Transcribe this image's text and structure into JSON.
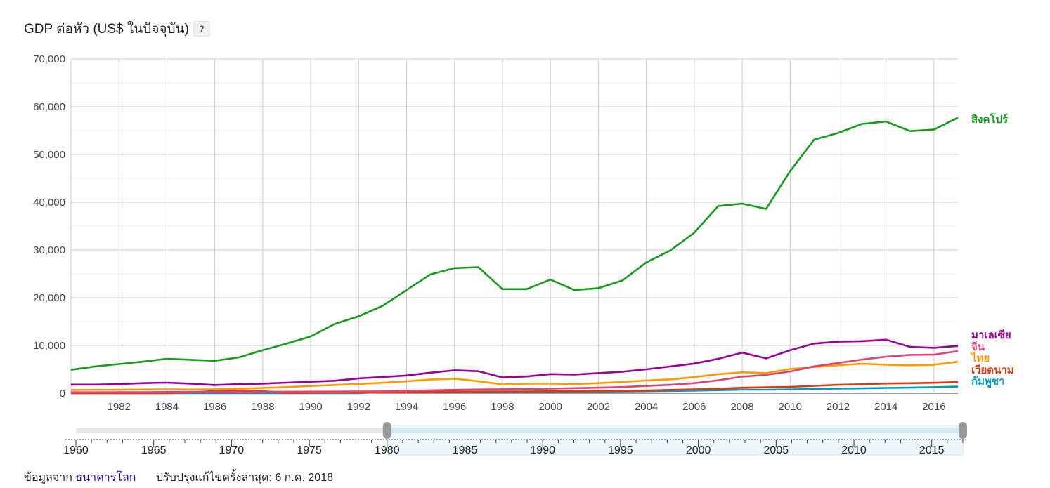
{
  "header": {
    "title": "GDP ต่อหัว (US$ ในปัจจุบัน)",
    "help_label": "?"
  },
  "footer": {
    "source_prefix": "ข้อมูลจาก",
    "source_link": "ธนาคารโลก",
    "updated": "ปรับปรุงแก้ไขครั้งล่าสุด: 6 ก.ค. 2018"
  },
  "chart_data": {
    "type": "line",
    "title": "GDP ต่อหัว (US$ ในปัจจุบัน)",
    "xlim": [
      1980,
      2017
    ],
    "ylim": [
      0,
      70000
    ],
    "y_ticks": [
      0,
      10000,
      20000,
      30000,
      40000,
      50000,
      60000,
      70000
    ],
    "y_tick_labels": [
      "0",
      "10,000",
      "20,000",
      "30,000",
      "40,000",
      "50,000",
      "60,000",
      "70,000"
    ],
    "x_ticks": [
      1982,
      1984,
      1986,
      1988,
      1990,
      1992,
      1994,
      1996,
      1998,
      2000,
      2002,
      2004,
      2006,
      2008,
      2010,
      2012,
      2014,
      2016
    ],
    "grid": true,
    "legend_placement": "right end labels",
    "x": [
      1980,
      1981,
      1982,
      1983,
      1984,
      1985,
      1986,
      1987,
      1988,
      1989,
      1990,
      1991,
      1992,
      1993,
      1994,
      1995,
      1996,
      1997,
      1998,
      1999,
      2000,
      2001,
      2002,
      2003,
      2004,
      2005,
      2006,
      2007,
      2008,
      2009,
      2010,
      2011,
      2012,
      2013,
      2014,
      2015,
      2016,
      2017
    ],
    "series": [
      {
        "name": "สิงคโปร์",
        "color": "#189a1e",
        "values": [
          4900,
          5600,
          6100,
          6600,
          7200,
          7000,
          6800,
          7500,
          9000,
          10400,
          11900,
          14500,
          16100,
          18300,
          21600,
          24900,
          26200,
          26400,
          21800,
          21800,
          23800,
          21600,
          22000,
          23600,
          27400,
          29900,
          33600,
          39200,
          39700,
          38600,
          46500,
          53100,
          54500,
          56400,
          56900,
          54900,
          55200,
          57700
        ]
      },
      {
        "name": "มาเลเซีย",
        "color": "#990099",
        "values": [
          1800,
          1800,
          1900,
          2100,
          2200,
          2000,
          1700,
          1900,
          2000,
          2200,
          2400,
          2600,
          3100,
          3400,
          3700,
          4300,
          4800,
          4600,
          3300,
          3500,
          4000,
          3900,
          4200,
          4500,
          5000,
          5600,
          6200,
          7200,
          8500,
          7300,
          9000,
          10400,
          10800,
          10900,
          11200,
          9700,
          9500,
          9900
        ]
      },
      {
        "name": "จีน",
        "color": "#dd4477",
        "values": [
          195,
          197,
          203,
          225,
          250,
          294,
          281,
          252,
          284,
          311,
          318,
          333,
          366,
          377,
          473,
          610,
          709,
          782,
          829,
          873,
          959,
          1053,
          1149,
          1289,
          1509,
          1753,
          2099,
          2694,
          3468,
          3832,
          4550,
          5618,
          6317,
          7051,
          7651,
          8033,
          8079,
          8827
        ]
      },
      {
        "name": "ไทย",
        "color": "#ff9900",
        "values": [
          680,
          710,
          720,
          780,
          800,
          760,
          810,
          930,
          1110,
          1280,
          1510,
          1720,
          1930,
          2170,
          2480,
          2850,
          3040,
          2490,
          1830,
          2000,
          2010,
          1890,
          2100,
          2360,
          2660,
          2890,
          3350,
          3970,
          4380,
          4210,
          5080,
          5490,
          5860,
          6170,
          5950,
          5840,
          5970,
          6590
        ]
      },
      {
        "name": "เวียดนาม",
        "color": "#dc3912",
        "values": [
          0,
          0,
          0,
          0,
          0,
          230,
          420,
          580,
          430,
          100,
          100,
          140,
          140,
          190,
          230,
          290,
          340,
          360,
          360,
          370,
          390,
          410,
          440,
          490,
          560,
          690,
          800,
          920,
          1150,
          1230,
          1330,
          1540,
          1750,
          1870,
          2030,
          2090,
          2170,
          2340
        ]
      },
      {
        "name": "กัมพูชา",
        "color": "#0099c6",
        "values": [
          0,
          0,
          0,
          0,
          0,
          0,
          0,
          0,
          0,
          0,
          0,
          0,
          0,
          240,
          250,
          320,
          320,
          300,
          270,
          290,
          300,
          320,
          340,
          360,
          410,
          470,
          540,
          630,
          740,
          740,
          780,
          880,
          950,
          1020,
          1100,
          1160,
          1270,
          1380
        ]
      }
    ],
    "range_slider": {
      "axis_ticks": [
        "1960",
        "1965",
        "1970",
        "1975",
        "1980",
        "1985",
        "1990",
        "1995",
        "2000",
        "2005",
        "2010",
        "2015"
      ],
      "range": [
        1960,
        2017
      ],
      "selected": [
        1980,
        2017
      ]
    }
  }
}
